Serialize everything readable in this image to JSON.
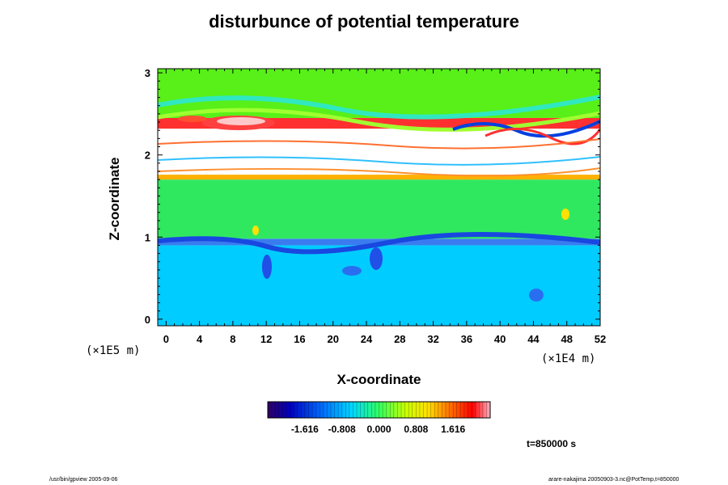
{
  "chart_data": {
    "type": "heatmap",
    "title": "disturbunce of potential temperature",
    "xlabel": "X-coordinate",
    "ylabel": "Z-coordinate",
    "x_unit": "(×1E4 m)",
    "y_unit": "(×1E5 m)",
    "xlim": [
      -1,
      52
    ],
    "ylim": [
      -0.08,
      3.05
    ],
    "x_ticks": [
      "0",
      "4",
      "8",
      "12",
      "16",
      "20",
      "24",
      "28",
      "32",
      "36",
      "40",
      "44",
      "48",
      "52"
    ],
    "x_tick_values": [
      0,
      4,
      8,
      12,
      16,
      20,
      24,
      28,
      32,
      36,
      40,
      44,
      48,
      52
    ],
    "y_ticks": [
      "0",
      "1",
      "2",
      "3"
    ],
    "y_tick_values": [
      0,
      1,
      2,
      3
    ],
    "colorbar": {
      "min": -2.424,
      "max": 2.424,
      "tick_labels": [
        "-1.616",
        "-0.808",
        "0.000",
        "0.808",
        "1.616"
      ],
      "tick_values": [
        -1.616,
        -0.808,
        0.0,
        0.808,
        1.616
      ]
    },
    "field_bands": [
      {
        "z_from": -0.08,
        "z_to": 0.9,
        "value": -0.75,
        "color": "#00ccff"
      },
      {
        "z_from": 0.9,
        "z_to": 0.98,
        "value": -1.1,
        "color": "#3a7cf0"
      },
      {
        "z_from": 0.98,
        "z_to": 1.7,
        "value": 0.15,
        "color": "#30e860"
      },
      {
        "z_from": 1.7,
        "z_to": 1.76,
        "value": 1.3,
        "color": "#ffb000"
      },
      {
        "z_from": 1.76,
        "z_to": 2.32,
        "value": 2.8,
        "color": "#ffffff"
      },
      {
        "z_from": 2.32,
        "z_to": 2.45,
        "value": 1.8,
        "color": "#ff3030"
      },
      {
        "z_from": 2.45,
        "z_to": 3.05,
        "value": 0.35,
        "color": "#58f018"
      }
    ],
    "grid": false
  },
  "time_label": "t=850000 s",
  "footer_left": "/usr/bin/gpview 2005-09-06",
  "footer_right": "arare-nakajima 20050903-3.nc@PotTemp,t=850000"
}
